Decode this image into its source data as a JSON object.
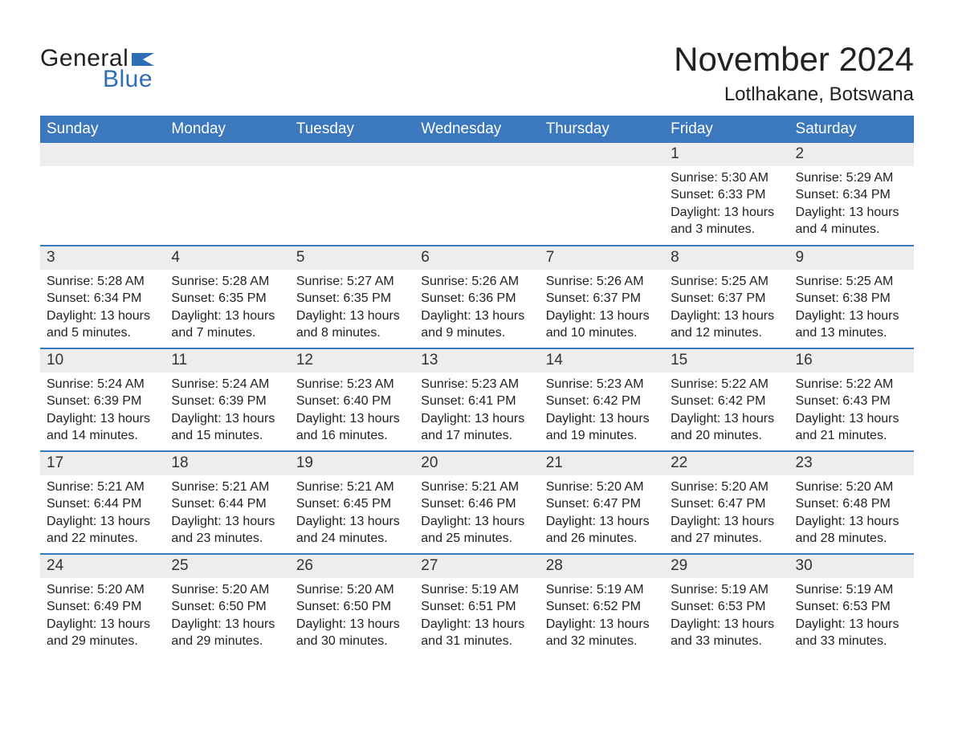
{
  "brand": {
    "word1": "General",
    "word2": "Blue",
    "word1_color": "#222222",
    "word2_color": "#2f6eb5",
    "flag_color": "#2f6eb5"
  },
  "title": "November 2024",
  "location": "Lotlhakane, Botswana",
  "colors": {
    "header_bg": "#3b78bd",
    "header_text": "#ffffff",
    "row_rule": "#3b78bd",
    "daynum_bg": "#ededed",
    "body_text": "#222222",
    "page_bg": "#ffffff"
  },
  "days_of_week": [
    "Sunday",
    "Monday",
    "Tuesday",
    "Wednesday",
    "Thursday",
    "Friday",
    "Saturday"
  ],
  "weeks": [
    [
      null,
      null,
      null,
      null,
      null,
      {
        "n": "1",
        "sunrise": "Sunrise: 5:30 AM",
        "sunset": "Sunset: 6:33 PM",
        "day1": "Daylight: 13 hours",
        "day2": "and 3 minutes."
      },
      {
        "n": "2",
        "sunrise": "Sunrise: 5:29 AM",
        "sunset": "Sunset: 6:34 PM",
        "day1": "Daylight: 13 hours",
        "day2": "and 4 minutes."
      }
    ],
    [
      {
        "n": "3",
        "sunrise": "Sunrise: 5:28 AM",
        "sunset": "Sunset: 6:34 PM",
        "day1": "Daylight: 13 hours",
        "day2": "and 5 minutes."
      },
      {
        "n": "4",
        "sunrise": "Sunrise: 5:28 AM",
        "sunset": "Sunset: 6:35 PM",
        "day1": "Daylight: 13 hours",
        "day2": "and 7 minutes."
      },
      {
        "n": "5",
        "sunrise": "Sunrise: 5:27 AM",
        "sunset": "Sunset: 6:35 PM",
        "day1": "Daylight: 13 hours",
        "day2": "and 8 minutes."
      },
      {
        "n": "6",
        "sunrise": "Sunrise: 5:26 AM",
        "sunset": "Sunset: 6:36 PM",
        "day1": "Daylight: 13 hours",
        "day2": "and 9 minutes."
      },
      {
        "n": "7",
        "sunrise": "Sunrise: 5:26 AM",
        "sunset": "Sunset: 6:37 PM",
        "day1": "Daylight: 13 hours",
        "day2": "and 10 minutes."
      },
      {
        "n": "8",
        "sunrise": "Sunrise: 5:25 AM",
        "sunset": "Sunset: 6:37 PM",
        "day1": "Daylight: 13 hours",
        "day2": "and 12 minutes."
      },
      {
        "n": "9",
        "sunrise": "Sunrise: 5:25 AM",
        "sunset": "Sunset: 6:38 PM",
        "day1": "Daylight: 13 hours",
        "day2": "and 13 minutes."
      }
    ],
    [
      {
        "n": "10",
        "sunrise": "Sunrise: 5:24 AM",
        "sunset": "Sunset: 6:39 PM",
        "day1": "Daylight: 13 hours",
        "day2": "and 14 minutes."
      },
      {
        "n": "11",
        "sunrise": "Sunrise: 5:24 AM",
        "sunset": "Sunset: 6:39 PM",
        "day1": "Daylight: 13 hours",
        "day2": "and 15 minutes."
      },
      {
        "n": "12",
        "sunrise": "Sunrise: 5:23 AM",
        "sunset": "Sunset: 6:40 PM",
        "day1": "Daylight: 13 hours",
        "day2": "and 16 minutes."
      },
      {
        "n": "13",
        "sunrise": "Sunrise: 5:23 AM",
        "sunset": "Sunset: 6:41 PM",
        "day1": "Daylight: 13 hours",
        "day2": "and 17 minutes."
      },
      {
        "n": "14",
        "sunrise": "Sunrise: 5:23 AM",
        "sunset": "Sunset: 6:42 PM",
        "day1": "Daylight: 13 hours",
        "day2": "and 19 minutes."
      },
      {
        "n": "15",
        "sunrise": "Sunrise: 5:22 AM",
        "sunset": "Sunset: 6:42 PM",
        "day1": "Daylight: 13 hours",
        "day2": "and 20 minutes."
      },
      {
        "n": "16",
        "sunrise": "Sunrise: 5:22 AM",
        "sunset": "Sunset: 6:43 PM",
        "day1": "Daylight: 13 hours",
        "day2": "and 21 minutes."
      }
    ],
    [
      {
        "n": "17",
        "sunrise": "Sunrise: 5:21 AM",
        "sunset": "Sunset: 6:44 PM",
        "day1": "Daylight: 13 hours",
        "day2": "and 22 minutes."
      },
      {
        "n": "18",
        "sunrise": "Sunrise: 5:21 AM",
        "sunset": "Sunset: 6:44 PM",
        "day1": "Daylight: 13 hours",
        "day2": "and 23 minutes."
      },
      {
        "n": "19",
        "sunrise": "Sunrise: 5:21 AM",
        "sunset": "Sunset: 6:45 PM",
        "day1": "Daylight: 13 hours",
        "day2": "and 24 minutes."
      },
      {
        "n": "20",
        "sunrise": "Sunrise: 5:21 AM",
        "sunset": "Sunset: 6:46 PM",
        "day1": "Daylight: 13 hours",
        "day2": "and 25 minutes."
      },
      {
        "n": "21",
        "sunrise": "Sunrise: 5:20 AM",
        "sunset": "Sunset: 6:47 PM",
        "day1": "Daylight: 13 hours",
        "day2": "and 26 minutes."
      },
      {
        "n": "22",
        "sunrise": "Sunrise: 5:20 AM",
        "sunset": "Sunset: 6:47 PM",
        "day1": "Daylight: 13 hours",
        "day2": "and 27 minutes."
      },
      {
        "n": "23",
        "sunrise": "Sunrise: 5:20 AM",
        "sunset": "Sunset: 6:48 PM",
        "day1": "Daylight: 13 hours",
        "day2": "and 28 minutes."
      }
    ],
    [
      {
        "n": "24",
        "sunrise": "Sunrise: 5:20 AM",
        "sunset": "Sunset: 6:49 PM",
        "day1": "Daylight: 13 hours",
        "day2": "and 29 minutes."
      },
      {
        "n": "25",
        "sunrise": "Sunrise: 5:20 AM",
        "sunset": "Sunset: 6:50 PM",
        "day1": "Daylight: 13 hours",
        "day2": "and 29 minutes."
      },
      {
        "n": "26",
        "sunrise": "Sunrise: 5:20 AM",
        "sunset": "Sunset: 6:50 PM",
        "day1": "Daylight: 13 hours",
        "day2": "and 30 minutes."
      },
      {
        "n": "27",
        "sunrise": "Sunrise: 5:19 AM",
        "sunset": "Sunset: 6:51 PM",
        "day1": "Daylight: 13 hours",
        "day2": "and 31 minutes."
      },
      {
        "n": "28",
        "sunrise": "Sunrise: 5:19 AM",
        "sunset": "Sunset: 6:52 PM",
        "day1": "Daylight: 13 hours",
        "day2": "and 32 minutes."
      },
      {
        "n": "29",
        "sunrise": "Sunrise: 5:19 AM",
        "sunset": "Sunset: 6:53 PM",
        "day1": "Daylight: 13 hours",
        "day2": "and 33 minutes."
      },
      {
        "n": "30",
        "sunrise": "Sunrise: 5:19 AM",
        "sunset": "Sunset: 6:53 PM",
        "day1": "Daylight: 13 hours",
        "day2": "and 33 minutes."
      }
    ]
  ]
}
